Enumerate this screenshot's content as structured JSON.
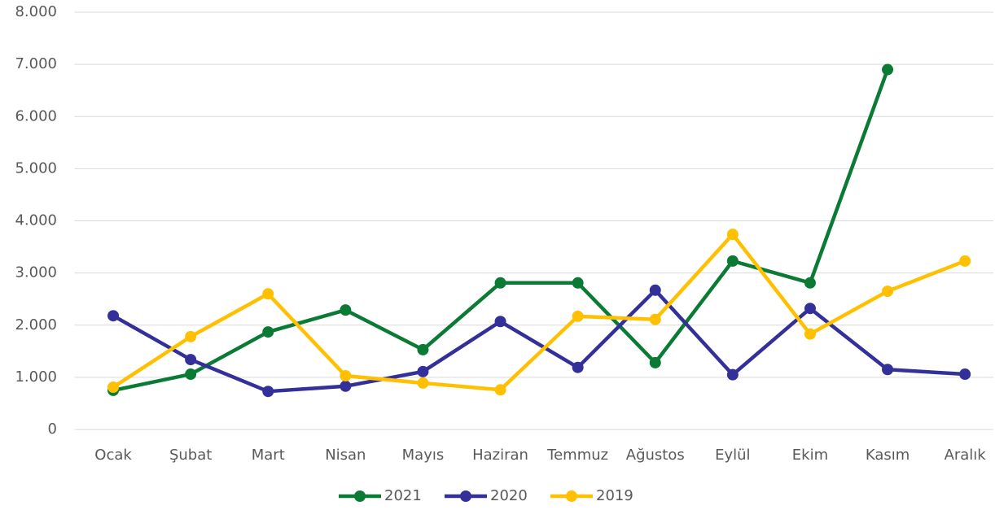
{
  "chart_data": {
    "type": "line",
    "categories": [
      "Ocak",
      "Şubat",
      "Mart",
      "Nisan",
      "Mayıs",
      "Haziran",
      "Temmuz",
      "Ağustos",
      "Eylül",
      "Ekim",
      "Kasım",
      "Aralık"
    ],
    "series": [
      {
        "name": "2021",
        "color": "#0b7a35",
        "values": [
          750,
          1060,
          1870,
          2290,
          1530,
          2810,
          2810,
          1280,
          3230,
          2810,
          6900,
          null
        ]
      },
      {
        "name": "2020",
        "color": "#34309a",
        "values": [
          2180,
          1340,
          730,
          830,
          1110,
          2070,
          1190,
          2670,
          1050,
          2320,
          1150,
          1060
        ]
      },
      {
        "name": "2019",
        "color": "#fec000",
        "values": [
          810,
          1780,
          2600,
          1030,
          890,
          760,
          2170,
          2110,
          3740,
          1830,
          2650,
          3230
        ]
      }
    ],
    "ylim": [
      0,
      8000
    ],
    "yticks": [
      0,
      {
        "value": 1000,
        "label": "1.000"
      },
      {
        "value": 2000,
        "label": "2.000"
      },
      {
        "value": 3000,
        "label": "3.000"
      },
      {
        "value": 4000,
        "label": "4.000"
      },
      {
        "value": 5000,
        "label": "5.000"
      },
      {
        "value": 6000,
        "label": "6.000"
      },
      {
        "value": 7000,
        "label": "7.000"
      },
      {
        "value": 8000,
        "label": "8.000"
      }
    ],
    "grid": true,
    "legend": "bottom"
  }
}
